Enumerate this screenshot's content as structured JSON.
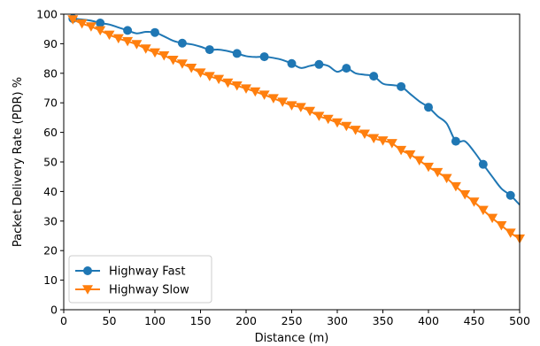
{
  "chart_data": {
    "type": "line",
    "title": "",
    "xlabel": "Distance (m)",
    "ylabel": "Packet Delivery Rate (PDR) %",
    "xlim": [
      0,
      500
    ],
    "ylim": [
      0,
      100
    ],
    "xticks": [
      "0",
      "50",
      "100",
      "150",
      "200",
      "250",
      "300",
      "350",
      "400",
      "450",
      "500"
    ],
    "yticks": [
      "0",
      "10",
      "20",
      "30",
      "40",
      "50",
      "60",
      "70",
      "80",
      "90",
      "100"
    ],
    "grid": false,
    "legend_position": "lower-left",
    "series": [
      {
        "name": "Highway Fast",
        "color": "#1f77b4",
        "marker": "circle",
        "x": [
          10,
          20,
          30,
          40,
          50,
          60,
          70,
          80,
          90,
          100,
          110,
          120,
          130,
          140,
          150,
          160,
          170,
          180,
          190,
          200,
          210,
          220,
          230,
          240,
          250,
          260,
          270,
          280,
          290,
          300,
          310,
          320,
          330,
          340,
          350,
          360,
          370,
          380,
          390,
          400,
          410,
          420,
          430,
          440,
          450,
          460,
          470,
          480,
          490,
          500
        ],
        "y": [
          98.5,
          98.2,
          97.8,
          97,
          96.5,
          95.5,
          94.5,
          93.5,
          94,
          93.8,
          92.5,
          91,
          90.2,
          89.8,
          89,
          88,
          88,
          87.5,
          86.7,
          85.8,
          85.5,
          85.6,
          85.2,
          84.5,
          83.3,
          81.8,
          82.5,
          83,
          82.5,
          80.5,
          81.7,
          80,
          79.5,
          79,
          76.5,
          76,
          75.5,
          73,
          70.5,
          68.5,
          65.5,
          63,
          57,
          57,
          53.5,
          49.2,
          45,
          41,
          38.7,
          35.5
        ],
        "marker_x": [
          10,
          40,
          70,
          100,
          130,
          160,
          190,
          220,
          250,
          280,
          310,
          340,
          370,
          400,
          430,
          460,
          490
        ]
      },
      {
        "name": "Highway Slow",
        "color": "#ff7f0e",
        "marker": "triangle-down",
        "x": [
          10,
          20,
          30,
          40,
          50,
          60,
          70,
          80,
          90,
          100,
          110,
          120,
          130,
          140,
          150,
          160,
          170,
          180,
          190,
          200,
          210,
          220,
          230,
          240,
          250,
          260,
          270,
          280,
          290,
          300,
          310,
          320,
          330,
          340,
          350,
          360,
          370,
          380,
          390,
          400,
          410,
          420,
          430,
          440,
          450,
          460,
          470,
          480,
          490,
          500
        ],
        "y": [
          98.2,
          96.8,
          95.8,
          94.5,
          93,
          91.8,
          90.8,
          89.8,
          88.3,
          87,
          86,
          84.5,
          83.2,
          81.8,
          80.2,
          79,
          78,
          76.8,
          75.8,
          74.8,
          73.8,
          72.7,
          71.5,
          70.3,
          69.1,
          68.5,
          67.2,
          65.5,
          64.5,
          63.3,
          62.1,
          60.8,
          59.5,
          58,
          57.2,
          56.3,
          54,
          52.5,
          50.5,
          48.3,
          46.5,
          44.5,
          41.7,
          39,
          36.5,
          33.7,
          31,
          28.5,
          26,
          24
        ]
      }
    ]
  }
}
